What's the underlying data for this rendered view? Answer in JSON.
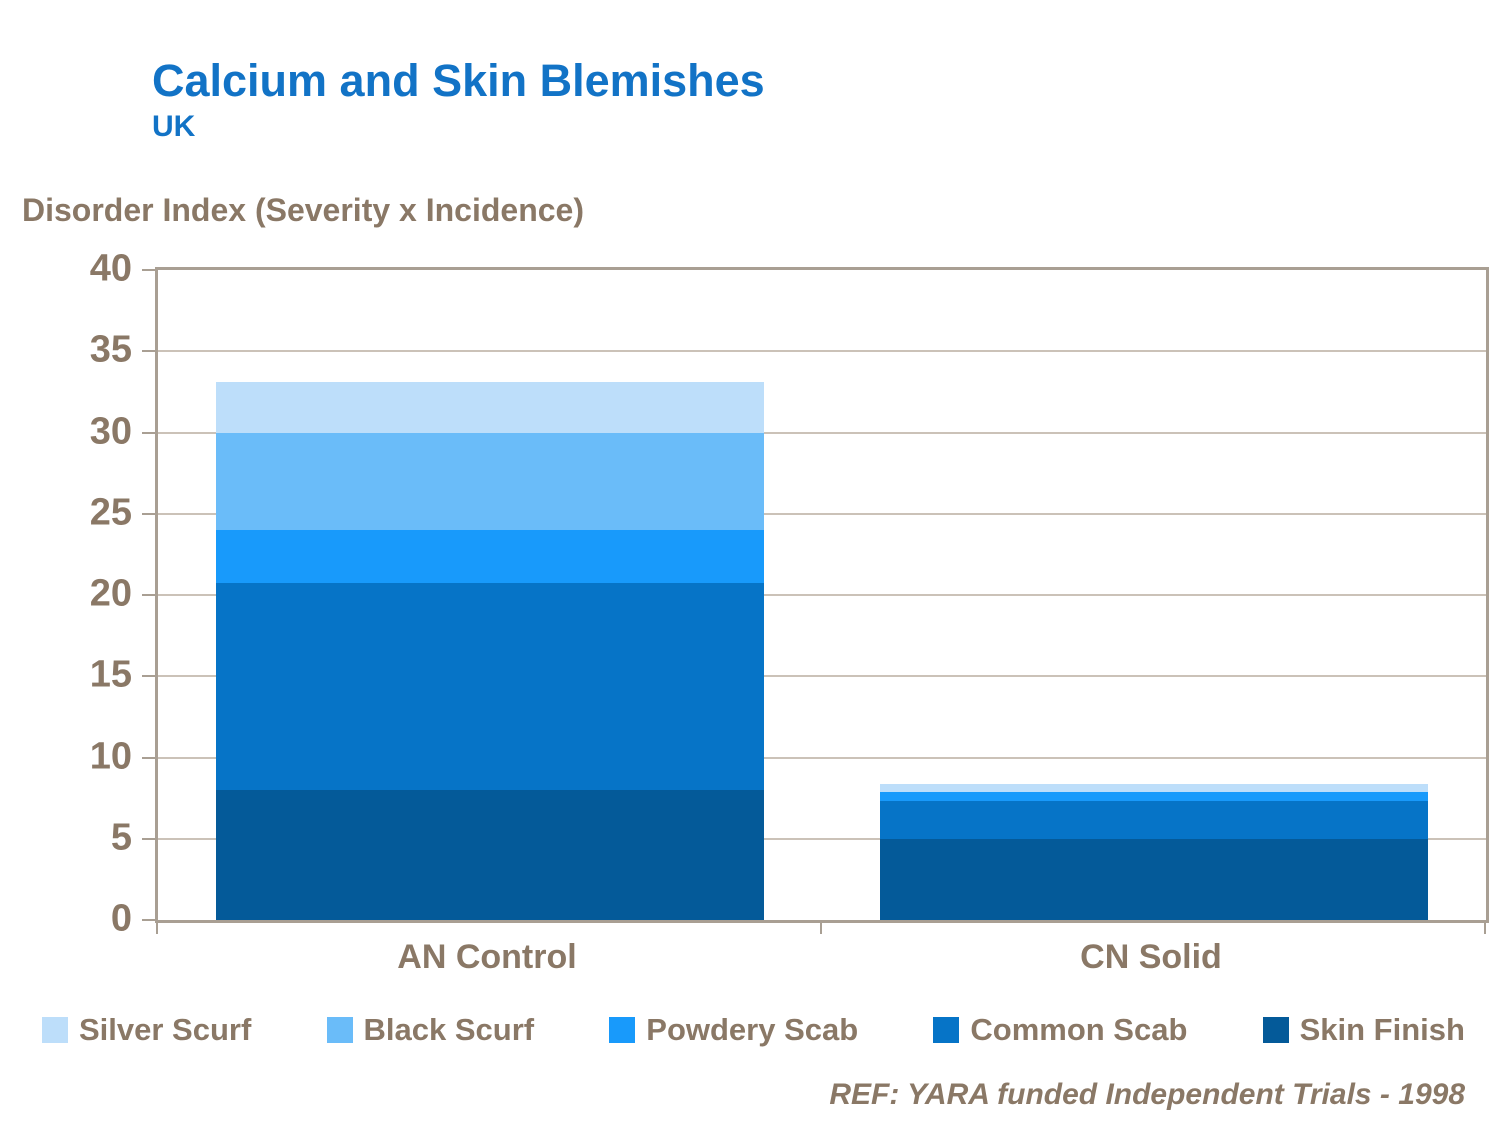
{
  "header": {
    "title": "Calcium and Skin Blemishes",
    "subtitle": "UK"
  },
  "footer": {
    "reference": "REF: YARA funded Independent Trials - 1998"
  },
  "colors": {
    "title_blue": "#1273C6",
    "text_brown": "#8A7866",
    "frame": "#A99F93",
    "gridline": "#CBC2B8"
  },
  "chart_data": {
    "type": "bar",
    "stacked": true,
    "title": "Calcium and Skin Blemishes",
    "subtitle": "UK",
    "axis_title": "Disorder Index (Severity x Incidence)",
    "categories": [
      "AN Control",
      "CN Solid"
    ],
    "series": [
      {
        "name": "Skin Finish",
        "color": "#045A99",
        "values": [
          8,
          5
        ]
      },
      {
        "name": "Common Scab",
        "color": "#0674C7",
        "values": [
          12.75,
          2.3
        ]
      },
      {
        "name": "Powdery Scab",
        "color": "#189AFB",
        "values": [
          3.25,
          0.6
        ]
      },
      {
        "name": "Black Scurf",
        "color": "#6ABCF9",
        "values": [
          6,
          0
        ]
      },
      {
        "name": "Silver Scurf",
        "color": "#BDDEFA",
        "values": [
          3.1,
          0.5
        ]
      }
    ],
    "totals": [
      33.1,
      8.4
    ],
    "ylim": [
      0,
      40
    ],
    "yticks": [
      0,
      5,
      10,
      15,
      20,
      25,
      30,
      35,
      40
    ],
    "grid": true,
    "legend_order": [
      "Silver Scurf",
      "Black Scurf",
      "Powdery Scab",
      "Common Scab",
      "Skin Finish"
    ],
    "legend_position": "bottom"
  }
}
